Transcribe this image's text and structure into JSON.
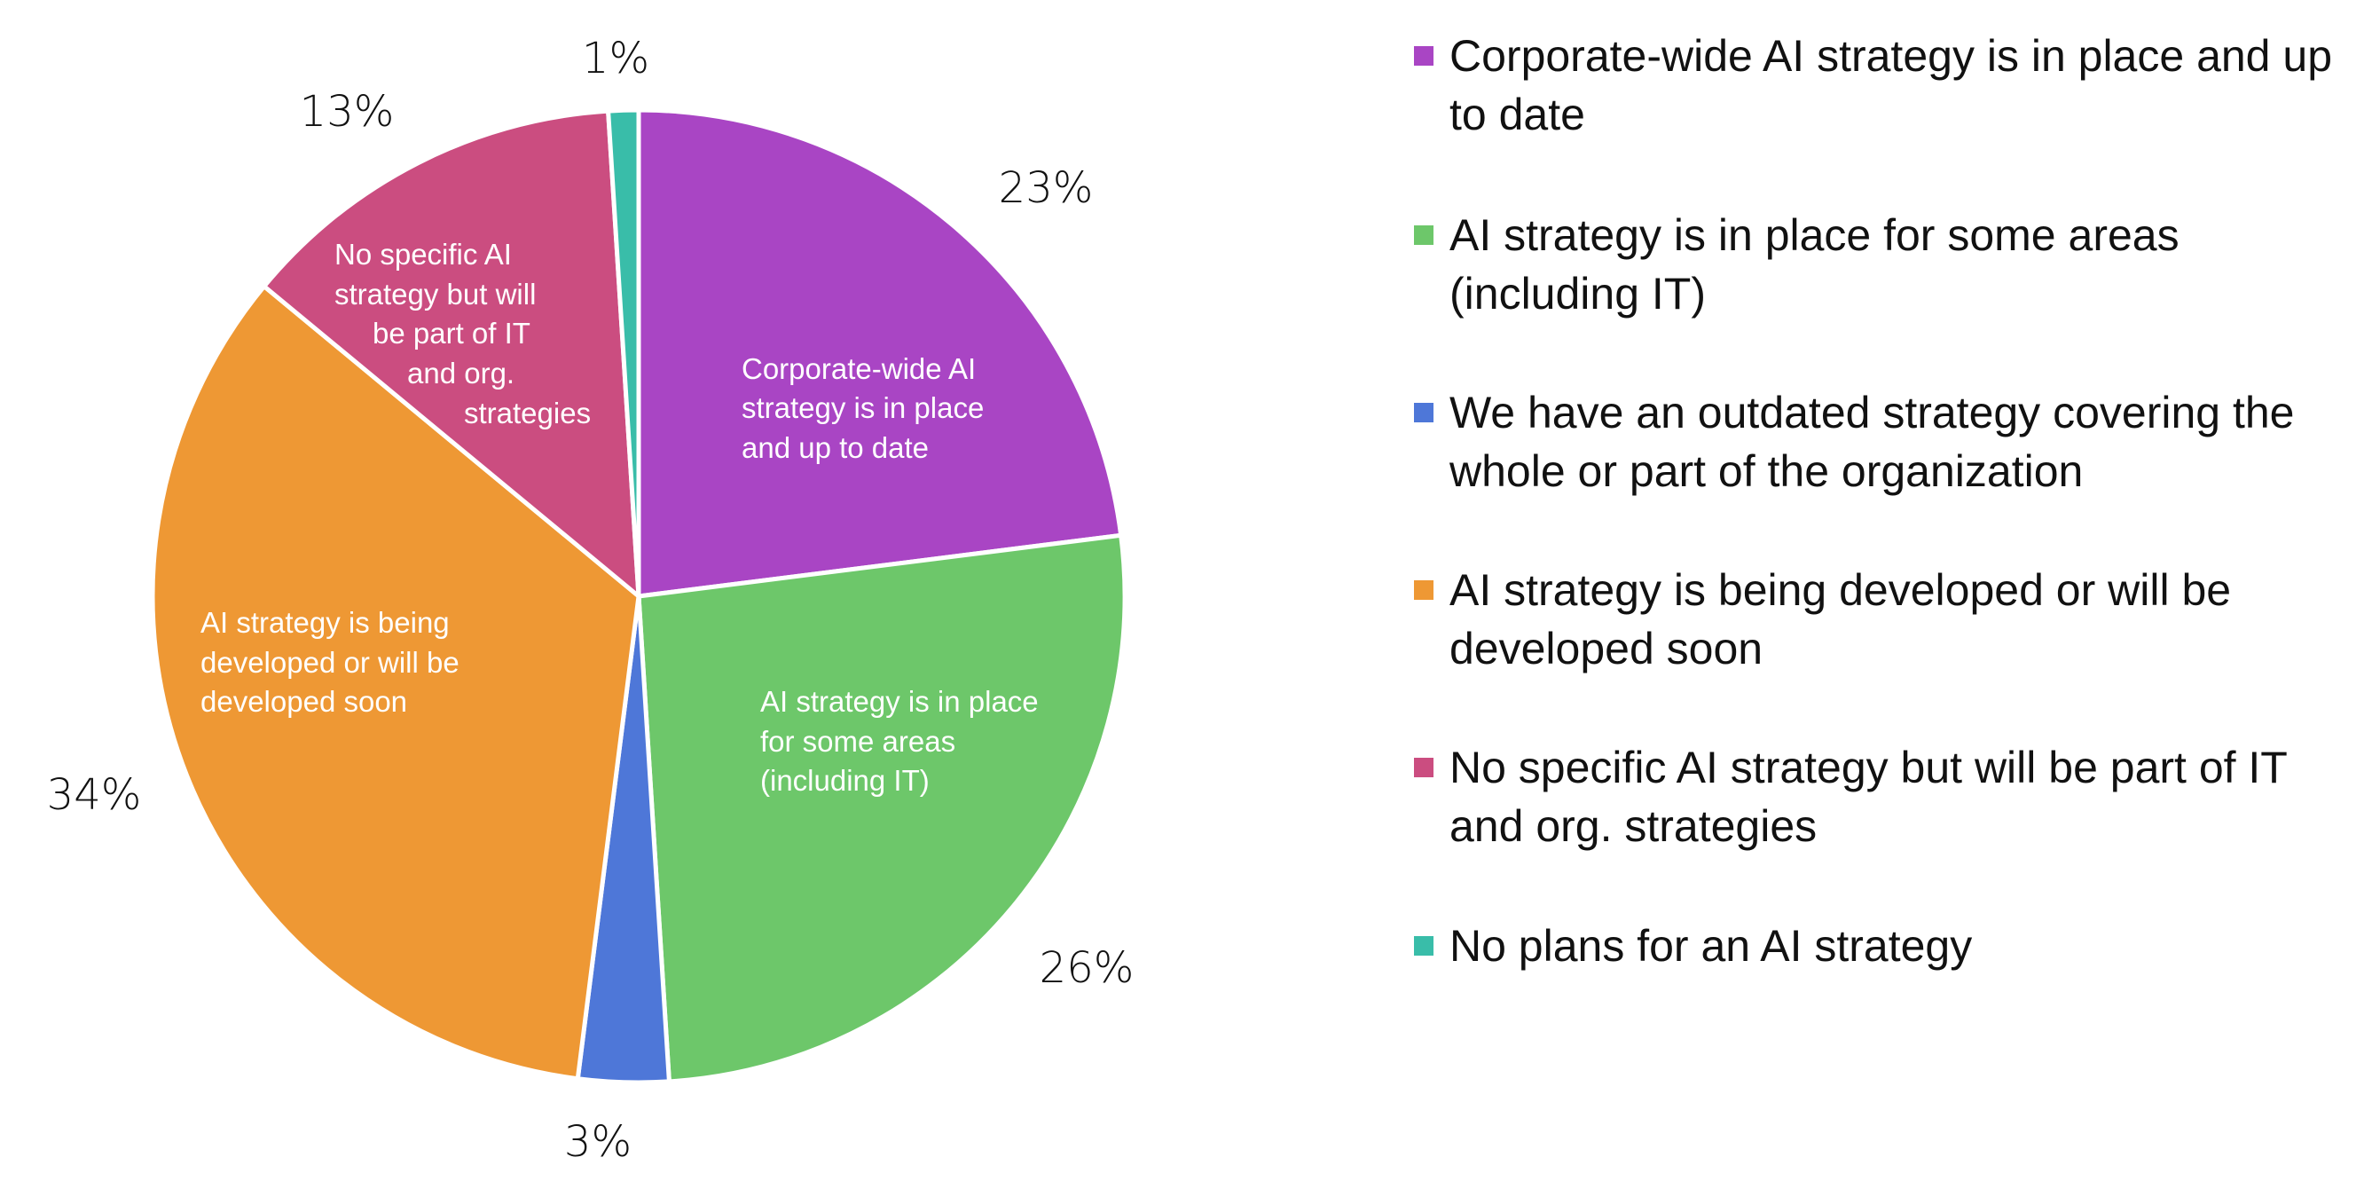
{
  "chart_data": {
    "type": "pie",
    "start": "top",
    "direction": "clockwise",
    "legend_position": "right",
    "slices": [
      {
        "label": "Corporate-wide AI strategy is in place and up to date",
        "value": 23,
        "pct_label": "23%",
        "color": "#A945C4",
        "inner_label": [
          "Corporate-wide AI",
          "strategy is in place",
          "and up to date"
        ]
      },
      {
        "label": "AI strategy is in place for some areas (including IT)",
        "value": 26,
        "pct_label": "26%",
        "color": "#6DC76A",
        "inner_label": [
          "AI strategy is in place",
          "for some areas",
          "(including IT)"
        ]
      },
      {
        "label": "We have an outdated strategy covering the whole or part of the organization",
        "value": 3,
        "pct_label": "3%",
        "color": "#4E77D8",
        "inner_label": []
      },
      {
        "label": "AI strategy is being developed or will be developed soon",
        "value": 34,
        "pct_label": "34%",
        "color": "#EE9834",
        "inner_label": [
          "AI strategy is being",
          "developed or will be",
          "developed soon"
        ]
      },
      {
        "label": "No specific AI strategy but will be part of IT and org. strategies",
        "value": 13,
        "pct_label": "13%",
        "color": "#CB4D80",
        "inner_label": [
          "No specific AI",
          "strategy but will",
          "be part of IT",
          "and org.",
          "strategies"
        ]
      },
      {
        "label": "No plans for an AI strategy",
        "value": 1,
        "pct_label": "1%",
        "color": "#39BDA9",
        "inner_label": []
      }
    ]
  }
}
